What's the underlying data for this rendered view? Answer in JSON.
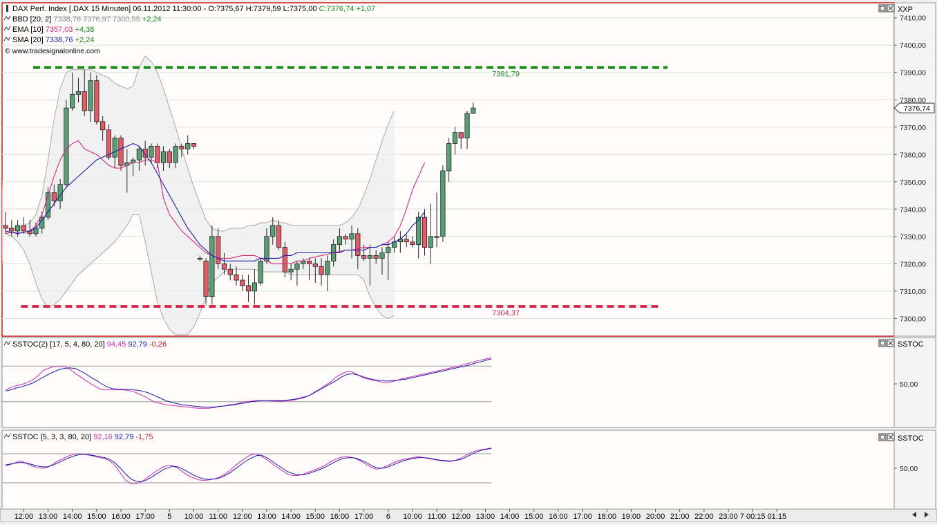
{
  "main_panel": {
    "header": {
      "symbol_line": "DAX Perf. Index [.DAX  15 Minuten] 06.11.2012 11:30:00 - ",
      "ohlc": "O:7375,67 H:7379,59 L:7375,00",
      "close": "C:7376,74",
      "change": "+1,07",
      "bbd_label": "BBD [20, 2]",
      "bbd_values": "7338,76 7376,97 7300,55",
      "bbd_change": "+2,24",
      "ema_label": "EMA [10]",
      "ema_value": "7357,03",
      "ema_change": "+4,38",
      "sma_label": "SMA [20]",
      "sma_value": "7338,76",
      "sma_change": "+2,24",
      "copyright": "© www.tradesignalonline.com"
    },
    "axis_title": "XXP",
    "last_price_tag": "7376,74",
    "resistance_label": "7391,79",
    "support_label": "7304,37"
  },
  "stoch1_panel": {
    "label": "SSTOC(2) [17, 5, 4, 80, 20]",
    "v1": "94,45",
    "v2": "92,79",
    "v3": "-0,26",
    "axis_title": "SSTOC",
    "tick_label": "50,00"
  },
  "stoch2_panel": {
    "label": "SSTOC [5, 3, 3, 80, 20]",
    "v1": "92,16",
    "v2": "92,79",
    "v3": "-1,75",
    "axis_title": "SSTOC",
    "tick_label": "50,00"
  },
  "chart_data": {
    "type": "candlestick",
    "colors": {
      "up": "#5a9e73",
      "down": "#e05d68",
      "ema": "#d6287e",
      "sma": "#1a1aa8",
      "bands": "#a8a8a8",
      "resistance": "#1a8a1a",
      "support": "#d42e4e",
      "stoch_fast": "#cc2bb0",
      "stoch_slow": "#1a1aa8"
    },
    "y_ticks": [
      7300,
      7310,
      7320,
      7330,
      7340,
      7350,
      7360,
      7370,
      7380,
      7390,
      7400,
      7410
    ],
    "y_tick_labels": [
      "7300,00",
      "7310,00",
      "7320,00",
      "7330,00",
      "7340,00",
      "7350,00",
      "7360,00",
      "7370,00",
      "7380,00",
      "7390,00",
      "7400,00",
      "7410,00"
    ],
    "ylim": [
      7293.5,
      7415.5
    ],
    "x_labels": [
      {
        "i": 3,
        "label": "12:00"
      },
      {
        "i": 7,
        "label": "13:00"
      },
      {
        "i": 11,
        "label": "14:00"
      },
      {
        "i": 15,
        "label": "15:00"
      },
      {
        "i": 19,
        "label": "16:00"
      },
      {
        "i": 23,
        "label": "17:00"
      },
      {
        "i": 27,
        "label": "5"
      },
      {
        "i": 31,
        "label": "10:00"
      },
      {
        "i": 35,
        "label": "11:00"
      },
      {
        "i": 39,
        "label": "12:00"
      },
      {
        "i": 43,
        "label": "13:00"
      },
      {
        "i": 47,
        "label": "14:00"
      },
      {
        "i": 51,
        "label": "15:00"
      },
      {
        "i": 55,
        "label": "16:00"
      },
      {
        "i": 59,
        "label": "17:00"
      },
      {
        "i": 63,
        "label": "6"
      },
      {
        "i": 67,
        "label": "10:00"
      },
      {
        "i": 71,
        "label": "11:00"
      },
      {
        "i": 75,
        "label": "12:00"
      },
      {
        "i": 79,
        "label": "13:00"
      },
      {
        "i": 83,
        "label": "14:00"
      },
      {
        "i": 87,
        "label": "15:00"
      },
      {
        "i": 91,
        "label": "16:00"
      },
      {
        "i": 95,
        "label": "17:00"
      },
      {
        "i": 99,
        "label": "18:00"
      },
      {
        "i": 103,
        "label": "19:00"
      },
      {
        "i": 107,
        "label": "20:00"
      },
      {
        "i": 111,
        "label": "21:00"
      },
      {
        "i": 115,
        "label": "22:00"
      },
      {
        "i": 119,
        "label": "23:00"
      },
      {
        "i": 123,
        "label": "7 00:15"
      },
      {
        "i": 127,
        "label": "01:15"
      }
    ],
    "candles": [
      [
        7334,
        7339,
        7331,
        7333
      ],
      [
        7333,
        7336,
        7330,
        7332
      ],
      [
        7332,
        7336,
        7330,
        7334
      ],
      [
        7334,
        7337,
        7331,
        7332
      ],
      [
        7332,
        7336,
        7330,
        7331
      ],
      [
        7331,
        7335,
        7330,
        7333
      ],
      [
        7333,
        7339,
        7331,
        7337
      ],
      [
        7337,
        7348,
        7336,
        7346
      ],
      [
        7346,
        7349,
        7341,
        7343
      ],
      [
        7343,
        7351,
        7340,
        7349
      ],
      [
        7349,
        7380,
        7348,
        7377
      ],
      [
        7377,
        7390,
        7376,
        7382
      ],
      [
        7382,
        7388,
        7379,
        7383
      ],
      [
        7383,
        7391,
        7374,
        7376
      ],
      [
        7376,
        7390,
        7372,
        7387
      ],
      [
        7387,
        7389,
        7371,
        7372
      ],
      [
        7372,
        7374,
        7365,
        7369
      ],
      [
        7369,
        7371,
        7358,
        7359
      ],
      [
        7359,
        7367,
        7355,
        7366
      ],
      [
        7366,
        7367,
        7354,
        7356
      ],
      [
        7356,
        7362,
        7346,
        7357
      ],
      [
        7357,
        7359,
        7352,
        7358
      ],
      [
        7358,
        7363,
        7354,
        7362
      ],
      [
        7362,
        7365,
        7356,
        7359
      ],
      [
        7359,
        7364,
        7357,
        7363
      ],
      [
        7363,
        7364,
        7355,
        7357
      ],
      [
        7357,
        7363,
        7354,
        7361
      ],
      [
        7361,
        7362,
        7355,
        7357
      ],
      [
        7357,
        7364,
        7355,
        7363
      ],
      [
        7363,
        7364,
        7359,
        7362
      ],
      [
        7362,
        7367,
        7360,
        7364
      ],
      [
        7364,
        7364,
        7362,
        7363
      ],
      [
        7322,
        7323,
        7321,
        7322
      ],
      [
        7321,
        7322,
        7305,
        7308
      ],
      [
        7308,
        7334,
        7305,
        7330
      ],
      [
        7330,
        7333,
        7318,
        7320
      ],
      [
        7320,
        7324,
        7316,
        7318
      ],
      [
        7318,
        7320,
        7314,
        7316
      ],
      [
        7316,
        7319,
        7312,
        7314
      ],
      [
        7314,
        7316,
        7310,
        7312
      ],
      [
        7312,
        7316,
        7306,
        7310
      ],
      [
        7310,
        7318,
        7305,
        7313
      ],
      [
        7313,
        7322,
        7312,
        7321
      ],
      [
        7321,
        7333,
        7320,
        7330
      ],
      [
        7330,
        7337,
        7327,
        7334
      ],
      [
        7334,
        7336,
        7325,
        7326
      ],
      [
        7326,
        7328,
        7315,
        7317
      ],
      [
        7317,
        7320,
        7314,
        7318
      ],
      [
        7318,
        7321,
        7312,
        7320
      ],
      [
        7320,
        7322,
        7318,
        7321
      ],
      [
        7321,
        7322,
        7314,
        7320
      ],
      [
        7320,
        7322,
        7313,
        7319
      ],
      [
        7319,
        7322,
        7312,
        7316
      ],
      [
        7316,
        7323,
        7310,
        7321
      ],
      [
        7321,
        7329,
        7319,
        7327
      ],
      [
        7327,
        7333,
        7324,
        7330
      ],
      [
        7330,
        7331,
        7327,
        7329
      ],
      [
        7329,
        7334,
        7322,
        7331
      ],
      [
        7331,
        7333,
        7318,
        7323
      ],
      [
        7323,
        7327,
        7321,
        7322
      ],
      [
        7322,
        7327,
        7312,
        7323
      ],
      [
        7323,
        7325,
        7320,
        7322
      ],
      [
        7322,
        7326,
        7316,
        7324
      ],
      [
        7324,
        7328,
        7314,
        7326
      ],
      [
        7326,
        7330,
        7324,
        7328
      ],
      [
        7328,
        7332,
        7324,
        7329
      ],
      [
        7329,
        7331,
        7326,
        7328
      ],
      [
        7328,
        7330,
        7326,
        7327
      ],
      [
        7327,
        7339,
        7322,
        7337
      ],
      [
        7337,
        7340,
        7323,
        7326
      ],
      [
        7326,
        7342,
        7320,
        7330
      ],
      [
        7330,
        7346,
        7326,
        7330
      ],
      [
        7330,
        7356,
        7328,
        7354
      ],
      [
        7354,
        7366,
        7350,
        7364
      ],
      [
        7364,
        7370,
        7360,
        7368
      ],
      [
        7368,
        7368,
        7362,
        7366
      ],
      [
        7366,
        7376,
        7362,
        7375
      ],
      [
        7375,
        7379,
        7375,
        7377
      ]
    ],
    "ema": [
      7331,
      7331.5,
      7331.2,
      7331.4,
      7332,
      7334,
      7338,
      7345,
      7352,
      7358,
      7362,
      7364,
      7365,
      7362,
      7361,
      7360,
      7358,
      7356,
      7355,
      7355,
      7356,
      7357,
      7357,
      7358,
      7358,
      7357,
      7344,
      7338,
      7335,
      7332,
      7330,
      7328,
      7326,
      7324,
      7323,
      7322,
      7322,
      7322,
      7322.5,
      7323,
      7323,
      7323,
      7322,
      7321,
      7320,
      7320,
      7320,
      7320,
      7321,
      7321,
      7322,
      7322.5,
      7323,
      7323.5,
      7324,
      7324.5,
      7325,
      7325,
      7325.5,
      7326,
      7326,
      7326,
      7327,
      7328,
      7330,
      7334,
      7340,
      7347,
      7352,
      7357
    ],
    "sma": [
      7332,
      7331.5,
      7331,
      7331.5,
      7332,
      7333,
      7336,
      7339,
      7342,
      7345,
      7348,
      7350,
      7352,
      7354,
      7356,
      7358,
      7359,
      7360,
      7361,
      7362,
      7363,
      7364,
      7363,
      7360,
      7357,
      7353,
      7349,
      7345,
      7341,
      7337,
      7333,
      7330,
      7327,
      7325,
      7323,
      7322,
      7321,
      7321,
      7321,
      7321,
      7321,
      7321,
      7322,
      7322,
      7322,
      7322,
      7323,
      7323,
      7324,
      7324,
      7324,
      7324,
      7324,
      7324,
      7324,
      7324,
      7325,
      7325,
      7325,
      7325,
      7326,
      7326,
      7327,
      7327,
      7328,
      7329,
      7331,
      7334,
      7336,
      7339
    ],
    "bb_upper": [
      7333,
      7333,
      7333,
      7334,
      7335,
      7338,
      7345,
      7358,
      7373,
      7384,
      7390,
      7391,
      7391,
      7391,
      7391,
      7390,
      7389,
      7388,
      7386,
      7385,
      7384,
      7385,
      7392,
      7396,
      7394,
      7390,
      7384,
      7377,
      7370,
      7362,
      7355,
      7348,
      7342,
      7336,
      7333,
      7332,
      7332,
      7333,
      7333,
      7333,
      7334,
      7334,
      7335,
      7335,
      7336,
      7335,
      7335,
      7334,
      7334,
      7334,
      7334,
      7334,
      7334,
      7334,
      7334,
      7334,
      7335,
      7337,
      7340,
      7345,
      7351,
      7358,
      7365,
      7371,
      7376
    ],
    "bb_lower": [
      7331,
      7330,
      7328,
      7325,
      7320,
      7313,
      7307,
      7304,
      7305,
      7307,
      7310,
      7313,
      7316,
      7318,
      7320,
      7322,
      7324,
      7326,
      7328,
      7331,
      7334,
      7338,
      7338,
      7328,
      7317,
      7306,
      7300,
      7296,
      7294,
      7294,
      7294,
      7297,
      7302,
      7308,
      7313,
      7315,
      7317,
      7318,
      7318,
      7318,
      7318,
      7318,
      7317,
      7317,
      7317,
      7317,
      7317,
      7316,
      7316,
      7316,
      7316,
      7316,
      7316,
      7316,
      7316,
      7316,
      7316,
      7316,
      7316,
      7314,
      7308,
      7304,
      7301,
      7300,
      7301
    ],
    "bb_fill_left": [
      7350,
      7320
    ],
    "resistance": {
      "value": 7391.79,
      "i_start": 5,
      "i_end": 109
    },
    "support": {
      "value": 7304.37,
      "i_start": 3,
      "i_end": 108
    },
    "stoch1_fast": [
      40,
      44,
      47,
      49,
      52,
      56,
      63,
      72,
      76,
      79,
      80,
      79,
      75,
      68,
      62,
      56,
      50,
      45,
      40,
      40,
      40,
      40,
      40,
      39,
      37,
      33,
      29,
      24,
      19,
      17,
      15,
      14,
      13,
      12,
      11,
      10,
      9,
      9,
      9,
      10,
      12,
      13,
      15,
      16,
      18,
      20,
      21,
      22,
      22,
      22,
      21,
      21,
      21,
      22,
      23,
      25,
      27,
      31,
      37,
      42,
      48,
      54,
      62,
      67,
      71,
      70,
      65,
      60,
      58,
      56,
      54,
      52,
      53,
      55,
      58,
      60,
      62,
      64,
      66,
      68,
      70,
      72,
      74,
      76,
      78,
      80,
      83,
      85,
      88,
      90,
      92,
      94
    ],
    "stoch1_slow": [
      38,
      40,
      43,
      45,
      48,
      51,
      56,
      61,
      66,
      70,
      74,
      76,
      77,
      76,
      72,
      67,
      61,
      56,
      50,
      45,
      42,
      41,
      41,
      41,
      40,
      39,
      37,
      34,
      30,
      26,
      22,
      19,
      17,
      15,
      14,
      13,
      12,
      11,
      11,
      11,
      12,
      13,
      14,
      15,
      17,
      18,
      20,
      21,
      22,
      22,
      22,
      22,
      22,
      23,
      24,
      26,
      28,
      31,
      36,
      41,
      46,
      51,
      56,
      62,
      66,
      67,
      65,
      62,
      59,
      57,
      56,
      55,
      55,
      56,
      57,
      58,
      60,
      62,
      64,
      66,
      68,
      70,
      72,
      74,
      76,
      78,
      80,
      82,
      85,
      87,
      90,
      92
    ],
    "stoch2_fast": [
      55,
      58,
      62,
      65,
      60,
      55,
      52,
      50,
      52,
      58,
      65,
      70,
      75,
      79,
      80,
      79,
      77,
      75,
      72,
      70,
      65,
      55,
      40,
      25,
      18,
      18,
      22,
      30,
      38,
      45,
      52,
      56,
      55,
      50,
      42,
      35,
      30,
      26,
      25,
      26,
      28,
      32,
      38,
      46,
      56,
      64,
      72,
      78,
      80,
      75,
      68,
      60,
      52,
      45,
      38,
      35,
      35,
      38,
      42,
      46,
      50,
      55,
      62,
      68,
      72,
      74,
      73,
      70,
      65,
      58,
      52,
      48,
      50,
      55,
      60,
      65,
      68,
      70,
      72,
      74,
      72,
      70,
      68,
      66,
      65,
      64,
      66,
      70,
      76,
      82,
      86,
      88,
      90,
      92
    ],
    "stoch2_slow": [
      57,
      59,
      61,
      62,
      61,
      58,
      55,
      53,
      53,
      56,
      61,
      66,
      71,
      75,
      78,
      79,
      78,
      76,
      74,
      72,
      68,
      61,
      50,
      38,
      28,
      23,
      22,
      26,
      32,
      39,
      46,
      51,
      54,
      53,
      48,
      42,
      36,
      31,
      28,
      27,
      28,
      30,
      35,
      41,
      49,
      57,
      65,
      71,
      76,
      77,
      72,
      65,
      57,
      50,
      43,
      39,
      37,
      37,
      39,
      43,
      47,
      51,
      57,
      63,
      68,
      71,
      72,
      71,
      67,
      62,
      56,
      51,
      50,
      52,
      56,
      61,
      65,
      68,
      70,
      72,
      72,
      71,
      69,
      67,
      66,
      65,
      66,
      68,
      72,
      78,
      83,
      87,
      89,
      91
    ]
  }
}
